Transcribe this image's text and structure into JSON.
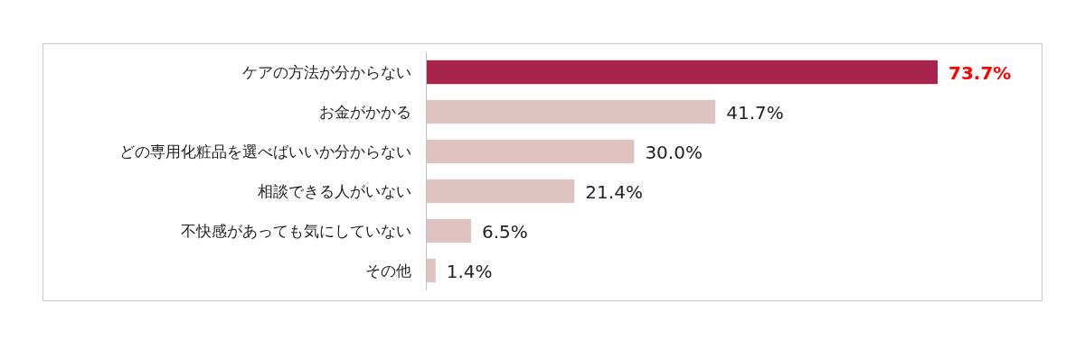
{
  "chart_data": {
    "type": "bar",
    "orientation": "horizontal",
    "categories": [
      "ケアの方法が分からない",
      "お金がかかる",
      "どの専用化粧品を選べばいいか分からない",
      "相談できる人がいない",
      "不快感があっても気にしていない",
      "その他"
    ],
    "values": [
      73.7,
      41.7,
      30.0,
      21.4,
      6.5,
      1.4
    ],
    "colors": [
      "#a8234c",
      "#dfc3c0",
      "#dfc3c0",
      "#dfc3c0",
      "#dfc3c0",
      "#dfc3c0"
    ],
    "value_labels": [
      "73.7%",
      "41.7%",
      "30.0%",
      "21.4%",
      "6.5%",
      "1.4%"
    ]
  }
}
